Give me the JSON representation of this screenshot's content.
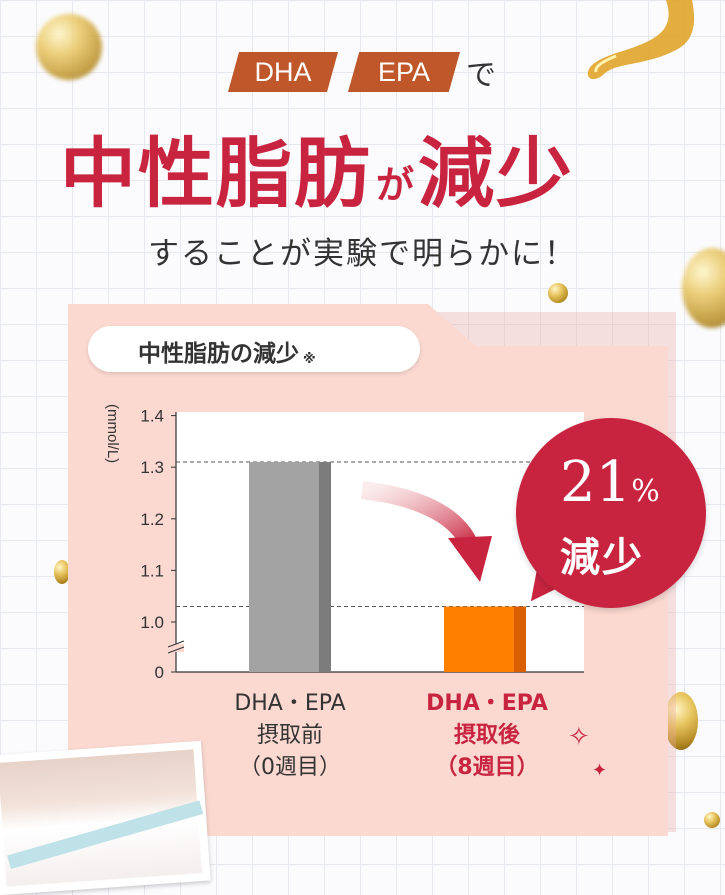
{
  "header": {
    "tag1": "DHA",
    "tag2": "EPA",
    "tag_suffix": "で",
    "headline_part1": "中性脂肪",
    "headline_particle": "が",
    "headline_part2": "減少",
    "subline": "することが実験で明らかに！"
  },
  "panel": {
    "title": "中性脂肪の減少",
    "title_mark": "※"
  },
  "badge": {
    "number": "21",
    "percent": "%",
    "label": "減少"
  },
  "chart_data": {
    "type": "bar",
    "title": "中性脂肪の減少",
    "ylabel": "(mmol/L)",
    "ylim": [
      0,
      1.4
    ],
    "yticks": [
      "0",
      "1.0",
      "1.1",
      "1.2",
      "1.3",
      "1.4"
    ],
    "categories": [
      [
        "DHA・EPA",
        "摂取前",
        "（0週目）"
      ],
      [
        "DHA・EPA",
        "摂取後",
        "（8週目）"
      ]
    ],
    "values": [
      1.31,
      1.03
    ],
    "colors": [
      "#a3a3a3",
      "#ff7f00"
    ],
    "reference_lines": [
      1.31,
      1.03
    ],
    "grid": false,
    "axis_break": true
  },
  "colors": {
    "accent": "#c8243f",
    "tag": "#c0572a",
    "panel": "#fbd9d1"
  }
}
